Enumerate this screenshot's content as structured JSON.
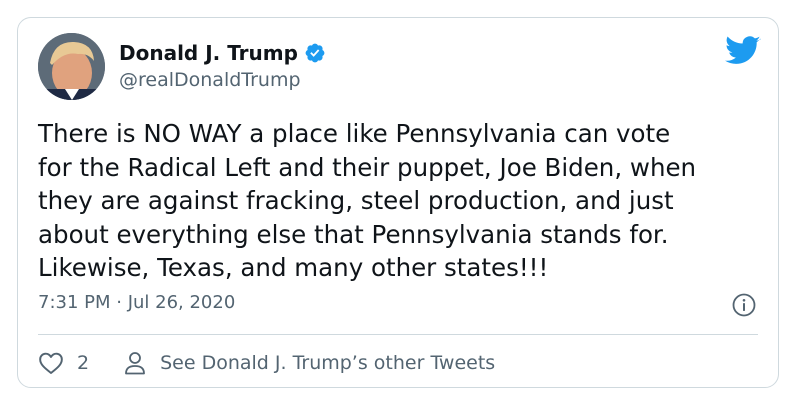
{
  "tweet": {
    "author": {
      "display_name": "Donald J. Trump",
      "handle": "@realDonaldTrump",
      "verified": true,
      "avatar_icon": "avatar-photo"
    },
    "logo_icon": "twitter-bird-icon",
    "text": "There is NO WAY a place like Pennsylvania can vote\nfor the Radical Left and their puppet, Joe Biden, when\nthey are against fracking, steel production, and just\nabout everything else that Pennsylvania stands for.\nLikewise, Texas, and many other states!!!",
    "timestamp": "7:31 PM · Jul 26, 2020",
    "info_icon": "info-icon",
    "actions": {
      "like_count": "2",
      "like_icon": "heart-icon",
      "profile_icon": "person-icon",
      "profile_link": "See Donald J. Trump’s other Tweets"
    }
  },
  "colors": {
    "brand_blue": "#1d9bf0",
    "text_primary": "#0f1419",
    "text_secondary": "#536471",
    "border": "#cfd9de"
  }
}
